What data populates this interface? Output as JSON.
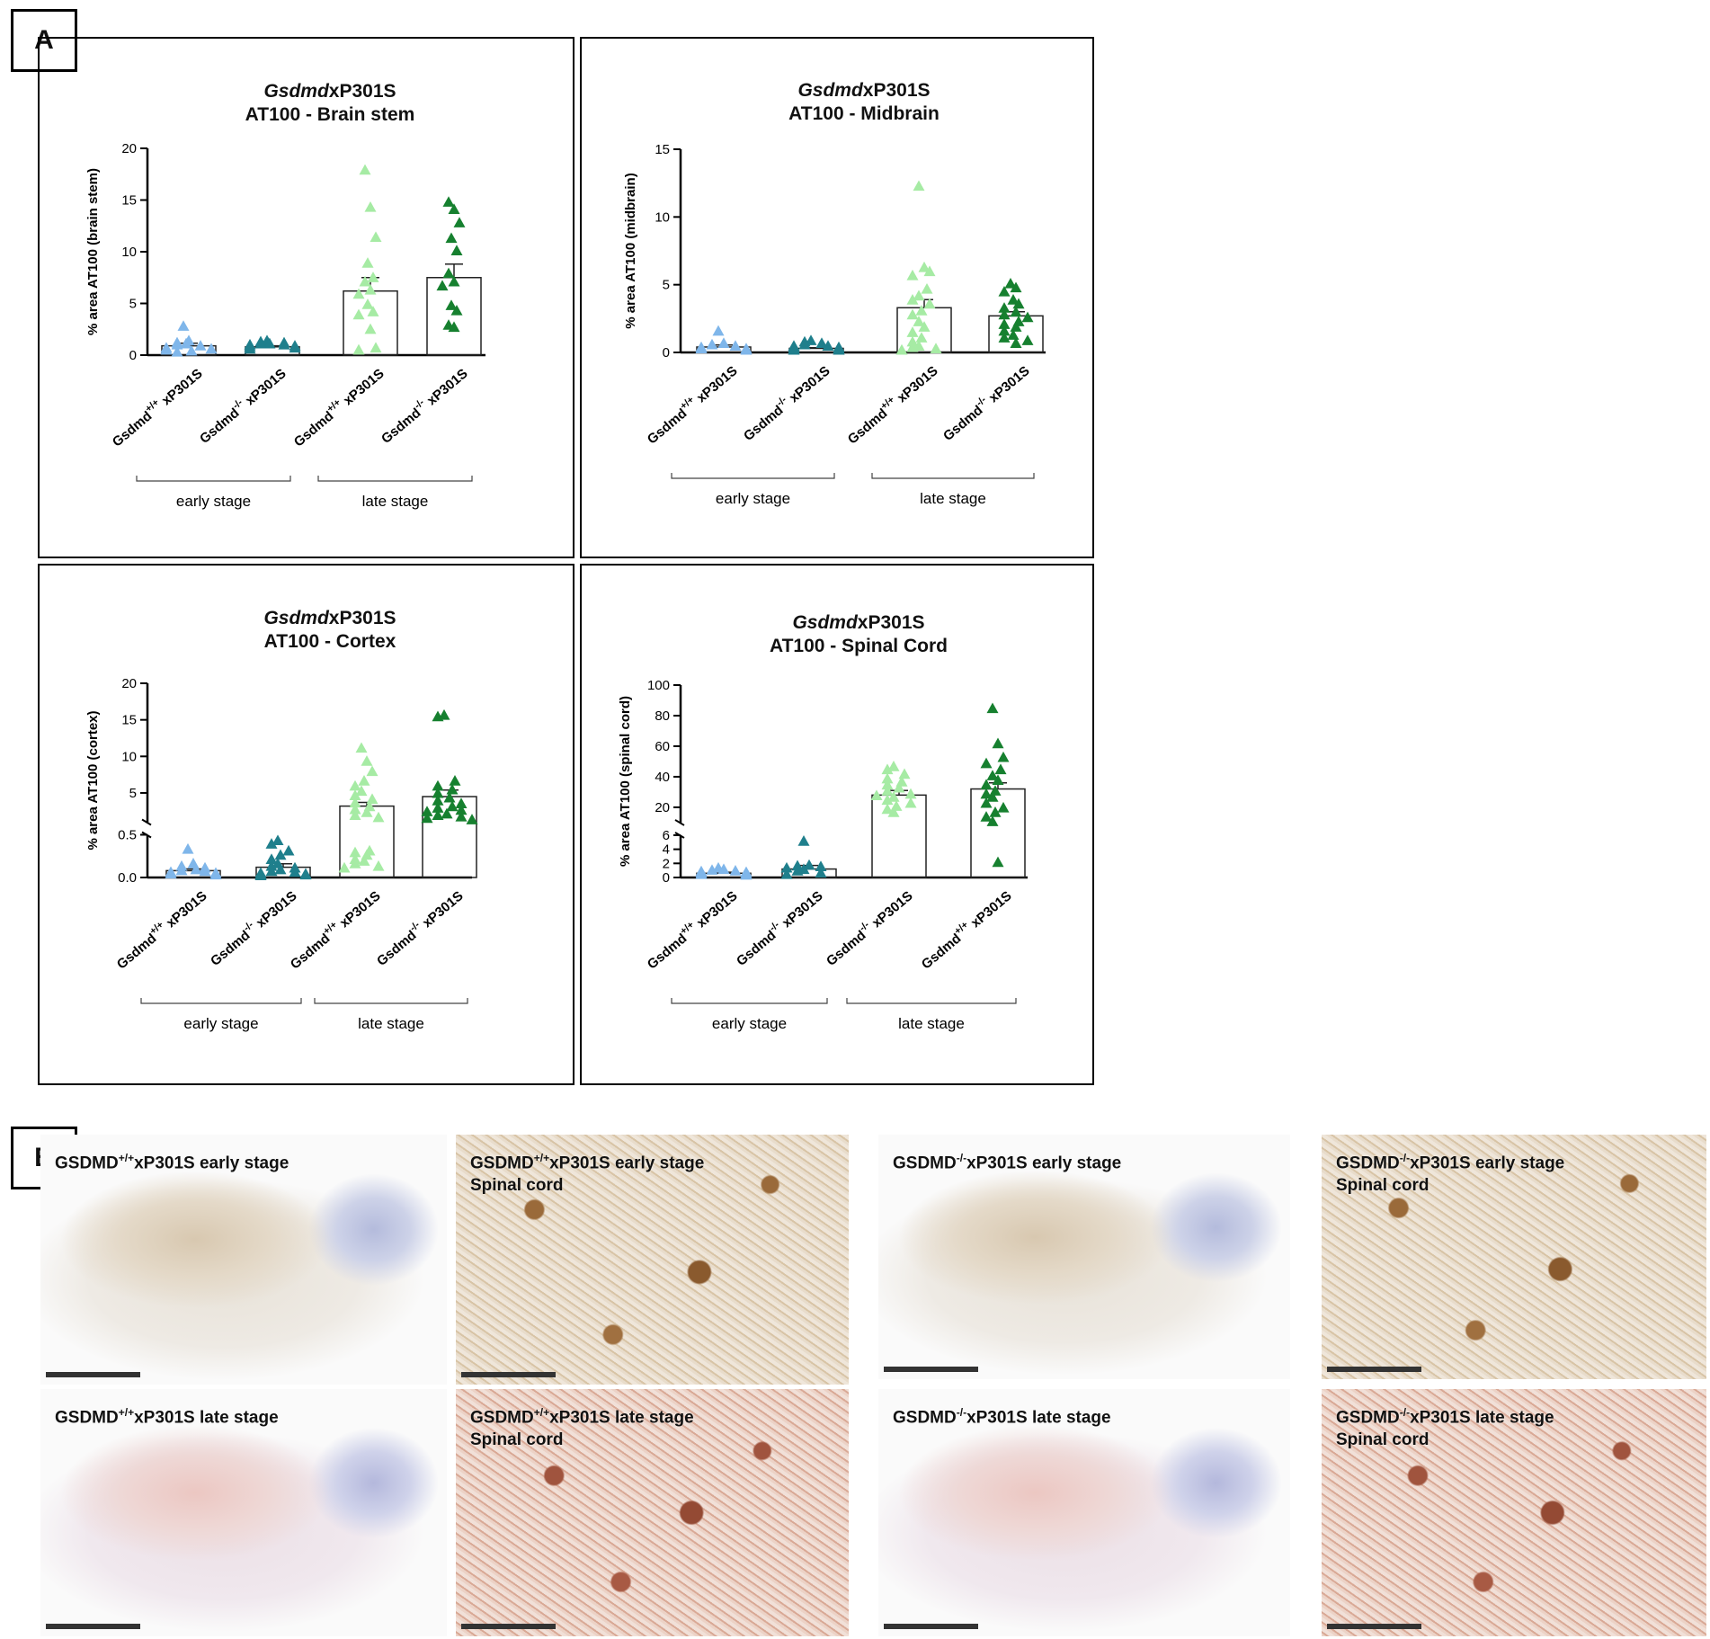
{
  "panel_a": {
    "label": "A"
  },
  "panel_b": {
    "label": "B"
  },
  "colors": {
    "wt_early": "#7fb6ea",
    "ko_early": "#1f7f8c",
    "wt_late": "#a6eba4",
    "ko_late": "#16802f"
  },
  "chart_data": [
    {
      "type": "scatter",
      "title_italic": "Gsdmd",
      "title_rest": "xP301S",
      "subtitle": "AT100 - Brain stem",
      "ylabel": "% area AT100 (brain stem)",
      "ylim": [
        0,
        20
      ],
      "yticks": [
        "0",
        "5",
        "10",
        "15",
        "20"
      ],
      "categories": [
        {
          "base": "Gsdmd",
          "sup": "+/+",
          "tail": " xP301S"
        },
        {
          "base": "Gsdmd",
          "sup": "-/-",
          "tail": " xP301S"
        },
        {
          "base": "Gsdmd",
          "sup": "+/+",
          "tail": " xP301S"
        },
        {
          "base": "Gsdmd",
          "sup": "-/-",
          "tail": " xP301S"
        }
      ],
      "groups": [
        "early stage",
        "late stage"
      ],
      "series": [
        {
          "mean": 0.9,
          "sem": 0.25,
          "values": [
            2.7,
            1.3,
            1.1,
            1.0,
            0.9,
            0.8,
            0.6,
            0.5,
            0.4,
            0.3,
            0.2
          ]
        },
        {
          "mean": 0.8,
          "sem": 0.1,
          "values": [
            1.3,
            1.2,
            1.1,
            1.0,
            1.0,
            0.9,
            0.9,
            0.8,
            0.7,
            0.6,
            0.5
          ]
        },
        {
          "mean": 6.2,
          "sem": 1.3,
          "values": [
            17.8,
            14.2,
            11.3,
            8.8,
            7.4,
            7.0,
            6.2,
            5.8,
            4.8,
            4.1,
            3.8,
            2.4,
            0.6,
            0.4
          ]
        },
        {
          "mean": 7.5,
          "sem": 1.3,
          "values": [
            14.7,
            14.0,
            12.7,
            11.2,
            10.0,
            7.8,
            7.0,
            6.6,
            4.7,
            4.2,
            2.8,
            2.6
          ]
        }
      ]
    },
    {
      "type": "scatter",
      "title_italic": "Gsdmd",
      "title_rest": "xP301S",
      "subtitle": "AT100 - Midbrain",
      "ylabel": "% area AT100 (midbrain)",
      "ylim": [
        0,
        15
      ],
      "yticks": [
        "0",
        "5",
        "10",
        "15"
      ],
      "categories": [
        {
          "base": "Gsdmd",
          "sup": "+/+",
          "tail": " xP301S"
        },
        {
          "base": "Gsdmd",
          "sup": "-/-",
          "tail": " xP301S"
        },
        {
          "base": "Gsdmd",
          "sup": "+/+",
          "tail": " xP301S"
        },
        {
          "base": "Gsdmd",
          "sup": "-/-",
          "tail": " xP301S"
        }
      ],
      "groups": [
        "early stage",
        "late stage"
      ],
      "series": [
        {
          "mean": 0.4,
          "sem": 0.15,
          "values": [
            1.5,
            0.6,
            0.5,
            0.4,
            0.3,
            0.2,
            0.2,
            0.1
          ]
        },
        {
          "mean": 0.3,
          "sem": 0.05,
          "values": [
            0.8,
            0.7,
            0.6,
            0.5,
            0.4,
            0.4,
            0.3,
            0.3,
            0.2,
            0.2,
            0.1,
            0.1,
            0.1
          ]
        },
        {
          "mean": 3.3,
          "sem": 0.6,
          "values": [
            12.2,
            6.2,
            5.9,
            5.6,
            4.6,
            4.1,
            3.8,
            3.5,
            3.0,
            2.7,
            2.2,
            1.8,
            1.4,
            1.0,
            0.7,
            0.4,
            0.3,
            0.2,
            0.1
          ]
        },
        {
          "mean": 2.7,
          "sem": 0.3,
          "values": [
            5.0,
            4.7,
            4.4,
            3.8,
            3.5,
            3.2,
            2.9,
            2.7,
            2.5,
            2.2,
            2.0,
            1.8,
            1.5,
            1.2,
            1.0,
            0.8,
            0.6
          ]
        }
      ]
    },
    {
      "type": "scatter",
      "title_italic": "Gsdmd",
      "title_rest": "xP301S",
      "subtitle": "AT100 - Cortex",
      "ylabel": "% area AT100 (cortex)",
      "y_lower_ticks": [
        "0.0",
        "0.5"
      ],
      "y_upper_ticks": [
        "5",
        "10",
        "15",
        "20"
      ],
      "lower_range": [
        0,
        0.5
      ],
      "upper_range": [
        1,
        20
      ],
      "categories": [
        {
          "base": "Gsdmd",
          "sup": "+/+",
          "tail": " xP301S"
        },
        {
          "base": "Gsdmd",
          "sup": "-/-",
          "tail": " xP301S"
        },
        {
          "base": "Gsdmd",
          "sup": "+/+",
          "tail": " xP301S"
        },
        {
          "base": "Gsdmd",
          "sup": "-/-",
          "tail": " xP301S"
        }
      ],
      "groups": [
        "early stage",
        "late stage"
      ],
      "series": [
        {
          "mean": 0.08,
          "sem": 0.02,
          "values": [
            0.32,
            0.15,
            0.12,
            0.1,
            0.08,
            0.07,
            0.06,
            0.05,
            0.04,
            0.03,
            0.02
          ]
        },
        {
          "mean": 0.12,
          "sem": 0.04,
          "values": [
            0.42,
            0.38,
            0.3,
            0.25,
            0.2,
            0.15,
            0.12,
            0.1,
            0.08,
            0.06,
            0.05,
            0.04,
            0.03,
            0.02,
            0.02,
            0.01
          ]
        },
        {
          "mean": 3.2,
          "sem": 0.5,
          "values": [
            11,
            9.2,
            7.8,
            6.5,
            5.8,
            5.1,
            4.5,
            4.0,
            3.5,
            3.0,
            2.6,
            2.2,
            1.8,
            1.5,
            0.3,
            0.28,
            0.25,
            0.2,
            0.18,
            0.15,
            0.12,
            0.1
          ]
        },
        {
          "mean": 4.5,
          "sem": 0.9,
          "values": [
            15.5,
            15.3,
            6.5,
            5.8,
            5.3,
            4.8,
            4.2,
            3.8,
            3.4,
            3.0,
            2.8,
            2.5,
            2.3,
            2.0,
            1.8,
            1.6,
            1.4,
            1.2
          ]
        }
      ]
    },
    {
      "type": "scatter",
      "title_italic": "Gsdmd",
      "title_rest": "xP301S",
      "subtitle": "AT100 - Spinal Cord",
      "ylabel": "% area AT100 (spinal cord)",
      "y_lower_ticks": [
        "0",
        "2",
        "4",
        "6"
      ],
      "y_upper_ticks": [
        "20",
        "40",
        "60",
        "80",
        "100"
      ],
      "lower_range": [
        0,
        6
      ],
      "upper_range": [
        10,
        100
      ],
      "categories": [
        {
          "base": "Gsdmd",
          "sup": "+/+",
          "tail": " xP301S"
        },
        {
          "base": "Gsdmd",
          "sup": "-/-",
          "tail": " xP301S"
        },
        {
          "base": "Gsdmd",
          "sup": "-/-",
          "tail": " xP301S"
        },
        {
          "base": "Gsdmd",
          "sup": "+/+",
          "tail": " xP301S"
        }
      ],
      "groups": [
        "early stage",
        "late stage"
      ],
      "series": [
        {
          "mean": 0.6,
          "sem": 0.15,
          "values": [
            1.2,
            1.0,
            0.9,
            0.8,
            0.7,
            0.6,
            0.5,
            0.4,
            0.3,
            0.2
          ]
        },
        {
          "mean": 1.2,
          "sem": 0.5,
          "values": [
            5.0,
            1.6,
            1.5,
            1.4,
            1.2,
            1.0,
            0.8,
            0.5,
            0.3
          ]
        },
        {
          "mean": 28,
          "sem": 3,
          "values": [
            46,
            44,
            41,
            38,
            36,
            34,
            32,
            30,
            28,
            27,
            26,
            24,
            22,
            20,
            18,
            16
          ]
        },
        {
          "mean": 32,
          "sem": 4,
          "values": [
            84,
            61,
            52,
            48,
            44,
            40,
            37,
            34,
            30,
            28,
            26,
            22,
            19,
            16,
            13,
            10,
            2
          ]
        }
      ]
    }
  ],
  "micrographs": [
    {
      "l1_pre": "GSDMD",
      "l1_sup": "+/+",
      "l1_post": "xP301S early stage",
      "l2": ""
    },
    {
      "l1_pre": "GSDMD",
      "l1_sup": "+/+",
      "l1_post": "xP301S early stage",
      "l2": "Spinal cord"
    },
    {
      "l1_pre": "GSDMD",
      "l1_sup": "-/-",
      "l1_post": "xP301S early stage",
      "l2": ""
    },
    {
      "l1_pre": "GSDMD",
      "l1_sup": "-/-",
      "l1_post": "xP301S early stage",
      "l2": "Spinal cord"
    },
    {
      "l1_pre": "GSDMD",
      "l1_sup": "+/+",
      "l1_post": "xP301S late stage",
      "l2": ""
    },
    {
      "l1_pre": "GSDMD",
      "l1_sup": "+/+",
      "l1_post": "xP301S late stage",
      "l2": "Spinal cord"
    },
    {
      "l1_pre": "GSDMD",
      "l1_sup": "-/-",
      "l1_post": "xP301S late stage",
      "l2": ""
    },
    {
      "l1_pre": "GSDMD",
      "l1_sup": "-/-",
      "l1_post": "xP301S late stage",
      "l2": "Spinal cord"
    }
  ]
}
